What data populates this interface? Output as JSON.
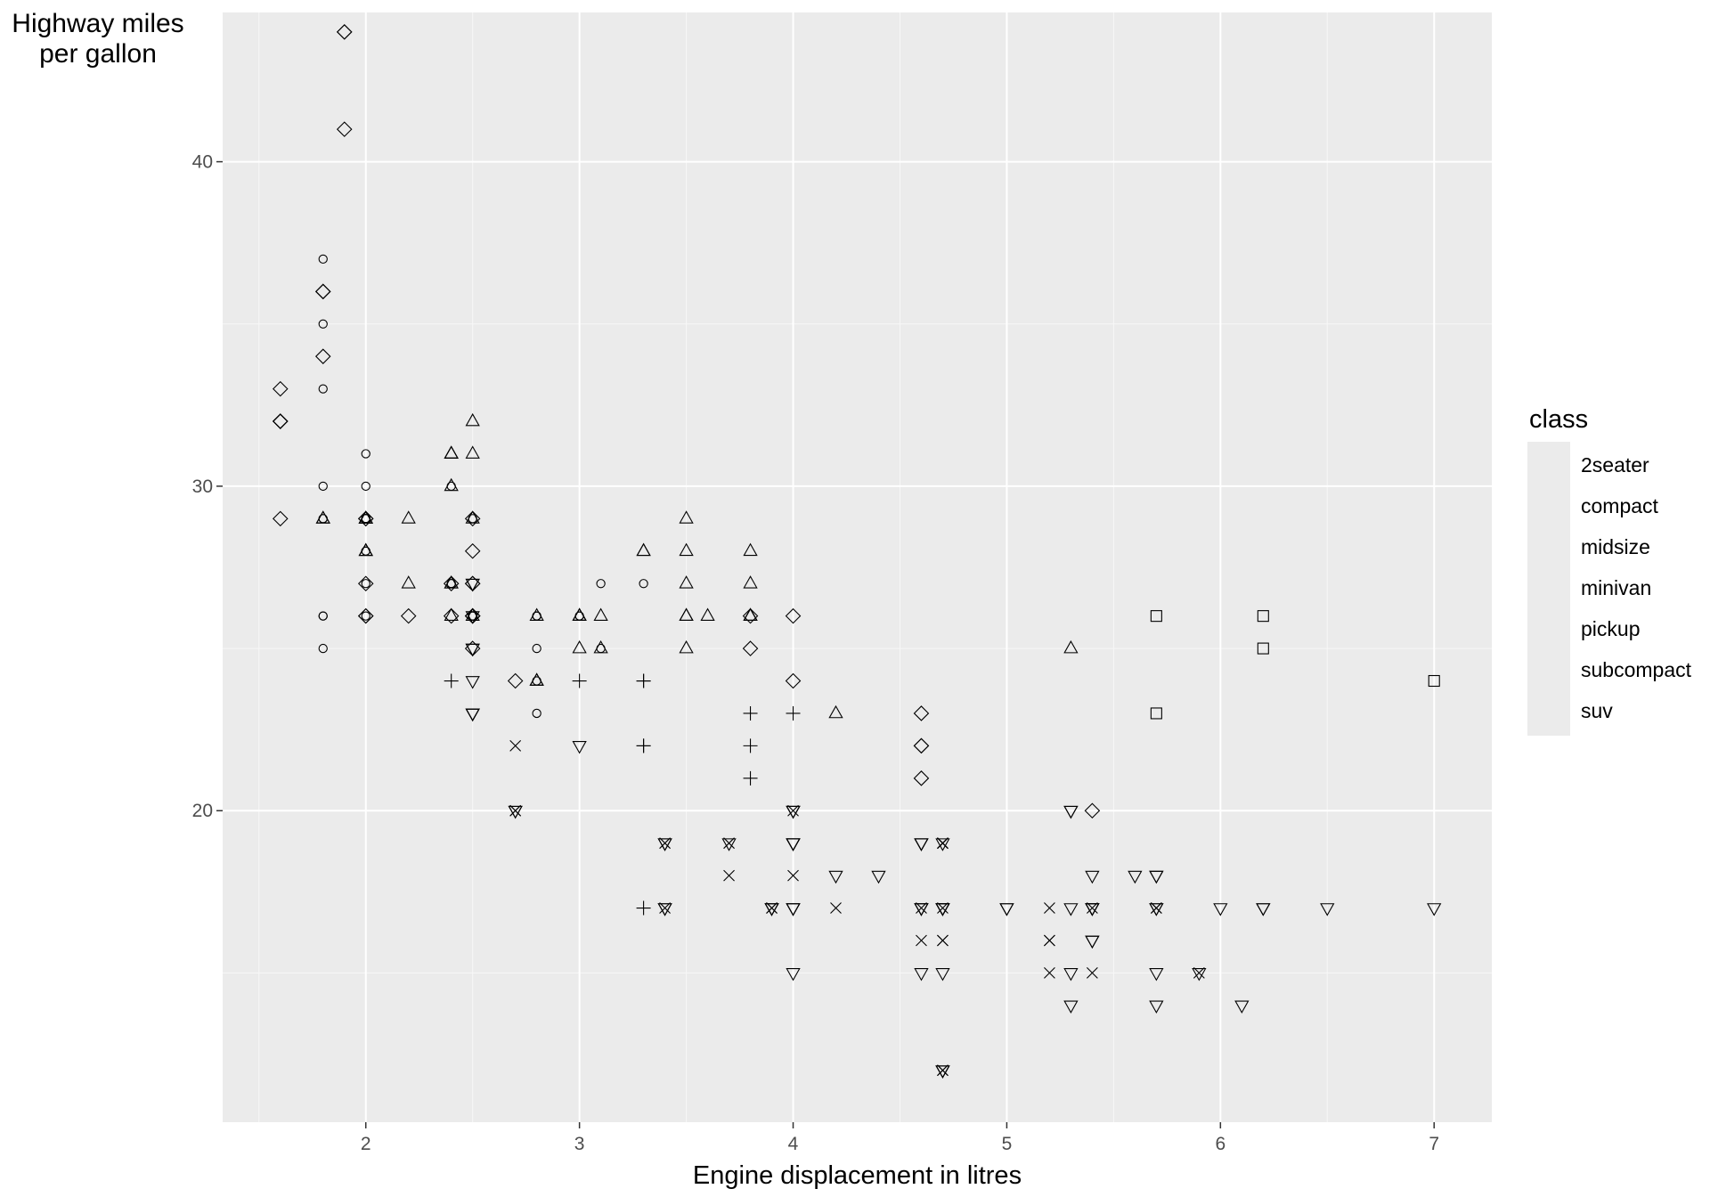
{
  "chart_data": {
    "type": "scatter",
    "xlabel": "Engine displacement in litres",
    "ylabel": "Highway miles per gallon",
    "ylabel_lines": [
      "Highway miles",
      "per gallon"
    ],
    "xlim": [
      1.33,
      7.27
    ],
    "ylim": [
      10.4,
      44.6
    ],
    "x_ticks": [
      2,
      3,
      4,
      5,
      6,
      7
    ],
    "y_ticks": [
      20,
      30,
      40
    ],
    "grid": true,
    "panel_background": "#ebebeb",
    "grid_color": "#ffffff",
    "legend": {
      "title": "class",
      "position": "right"
    },
    "series": [
      {
        "name": "2seater",
        "shape": "square",
        "points": [
          [
            5.7,
            26
          ],
          [
            5.7,
            23
          ],
          [
            6.2,
            26
          ],
          [
            6.2,
            25
          ],
          [
            7.0,
            24
          ]
        ]
      },
      {
        "name": "compact",
        "shape": "circle",
        "points": [
          [
            1.8,
            29
          ],
          [
            1.8,
            29
          ],
          [
            2.0,
            31
          ],
          [
            2.0,
            30
          ],
          [
            2.8,
            26
          ],
          [
            2.8,
            26
          ],
          [
            3.1,
            27
          ],
          [
            1.8,
            26
          ],
          [
            1.8,
            25
          ],
          [
            1.8,
            26
          ],
          [
            2.0,
            28
          ],
          [
            2.0,
            29
          ],
          [
            2.8,
            25
          ],
          [
            2.8,
            26
          ],
          [
            3.1,
            25
          ],
          [
            2.0,
            29
          ],
          [
            2.0,
            27
          ],
          [
            2.8,
            24
          ],
          [
            2.8,
            23
          ],
          [
            1.8,
            37
          ],
          [
            1.8,
            35
          ],
          [
            1.8,
            33
          ],
          [
            1.8,
            30
          ],
          [
            2.0,
            29
          ],
          [
            2.0,
            26
          ],
          [
            2.0,
            29
          ],
          [
            2.0,
            29
          ],
          [
            2.0,
            28
          ],
          [
            2.0,
            29
          ],
          [
            2.4,
            27
          ],
          [
            2.4,
            30
          ],
          [
            2.4,
            27
          ],
          [
            2.5,
            29
          ],
          [
            2.5,
            26
          ],
          [
            2.5,
            26
          ],
          [
            3.0,
            26
          ],
          [
            3.0,
            26
          ],
          [
            3.3,
            27
          ]
        ]
      },
      {
        "name": "midsize",
        "shape": "triangle",
        "points": [
          [
            2.4,
            27
          ],
          [
            2.4,
            30
          ],
          [
            3.1,
            26
          ],
          [
            3.5,
            29
          ],
          [
            3.6,
            26
          ],
          [
            2.8,
            26
          ],
          [
            3.3,
            28
          ],
          [
            3.8,
            26
          ],
          [
            3.8,
            28
          ],
          [
            2.5,
            29
          ],
          [
            2.5,
            32
          ],
          [
            3.0,
            26
          ],
          [
            3.5,
            28
          ],
          [
            2.4,
            27
          ],
          [
            2.4,
            31
          ],
          [
            3.3,
            28
          ],
          [
            3.5,
            27
          ],
          [
            2.5,
            31
          ],
          [
            3.8,
            26
          ],
          [
            3.8,
            27
          ],
          [
            3.0,
            26
          ],
          [
            3.1,
            25
          ],
          [
            3.8,
            26
          ],
          [
            2.2,
            29
          ],
          [
            2.2,
            27
          ],
          [
            2.4,
            31
          ],
          [
            2.4,
            31
          ],
          [
            3.0,
            26
          ],
          [
            3.5,
            25
          ],
          [
            3.5,
            26
          ],
          [
            4.2,
            23
          ],
          [
            5.3,
            25
          ],
          [
            1.8,
            29
          ],
          [
            1.8,
            29
          ],
          [
            2.0,
            28
          ],
          [
            2.0,
            29
          ],
          [
            2.8,
            24
          ],
          [
            2.8,
            24
          ],
          [
            2.4,
            26
          ],
          [
            2.5,
            26
          ],
          [
            3.0,
            25
          ],
          [
            3.5,
            26
          ],
          [
            2.0,
            29
          ],
          [
            2.0,
            28
          ],
          [
            2.0,
            29
          ],
          [
            2.0,
            29
          ],
          [
            2.0,
            28
          ]
        ]
      },
      {
        "name": "minivan",
        "shape": "plus",
        "points": [
          [
            2.4,
            24
          ],
          [
            3.0,
            24
          ],
          [
            3.3,
            22
          ],
          [
            3.3,
            22
          ],
          [
            3.3,
            24
          ],
          [
            3.3,
            24
          ],
          [
            3.3,
            17
          ],
          [
            3.8,
            22
          ],
          [
            3.8,
            21
          ],
          [
            3.8,
            23
          ],
          [
            4.0,
            23
          ]
        ]
      },
      {
        "name": "pickup",
        "shape": "cross",
        "points": [
          [
            2.7,
            20
          ],
          [
            2.7,
            22
          ],
          [
            2.7,
            20
          ],
          [
            3.7,
            19
          ],
          [
            3.7,
            18
          ],
          [
            3.9,
            17
          ],
          [
            3.9,
            17
          ],
          [
            4.7,
            19
          ],
          [
            4.7,
            19
          ],
          [
            4.7,
            12
          ],
          [
            4.7,
            17
          ],
          [
            4.7,
            16
          ],
          [
            5.2,
            17
          ],
          [
            5.2,
            15
          ],
          [
            5.7,
            17
          ],
          [
            5.9,
            15
          ],
          [
            4.7,
            12
          ],
          [
            4.7,
            19
          ],
          [
            4.7,
            16
          ],
          [
            5.2,
            16
          ],
          [
            5.2,
            16
          ],
          [
            5.7,
            17
          ],
          [
            3.4,
            19
          ],
          [
            3.4,
            17
          ],
          [
            4.0,
            20
          ],
          [
            4.0,
            18
          ],
          [
            4.6,
            17
          ],
          [
            4.6,
            16
          ],
          [
            5.4,
            17
          ],
          [
            5.4,
            15
          ],
          [
            4.2,
            17
          ]
        ]
      },
      {
        "name": "subcompact",
        "shape": "diamond",
        "points": [
          [
            3.8,
            26
          ],
          [
            3.8,
            25
          ],
          [
            4.0,
            26
          ],
          [
            4.0,
            24
          ],
          [
            4.6,
            21
          ],
          [
            4.6,
            22
          ],
          [
            4.6,
            23
          ],
          [
            4.6,
            22
          ],
          [
            5.4,
            20
          ],
          [
            1.6,
            33
          ],
          [
            1.6,
            32
          ],
          [
            1.6,
            32
          ],
          [
            1.6,
            29
          ],
          [
            1.6,
            32
          ],
          [
            1.8,
            34
          ],
          [
            1.8,
            36
          ],
          [
            1.8,
            36
          ],
          [
            2.0,
            29
          ],
          [
            2.4,
            26
          ],
          [
            2.4,
            27
          ],
          [
            2.5,
            26
          ],
          [
            2.5,
            26
          ],
          [
            2.5,
            26
          ],
          [
            2.5,
            26
          ],
          [
            2.5,
            27
          ],
          [
            2.5,
            25
          ],
          [
            2.5,
            28
          ],
          [
            2.5,
            29
          ],
          [
            2.0,
            26
          ],
          [
            2.0,
            27
          ],
          [
            2.2,
            26
          ],
          [
            2.7,
            24
          ],
          [
            2.5,
            27
          ],
          [
            1.9,
            44
          ],
          [
            1.9,
            44
          ],
          [
            1.9,
            41
          ],
          [
            2.0,
            29
          ],
          [
            2.0,
            26
          ]
        ]
      },
      {
        "name": "suv",
        "shape": "triangle-down",
        "points": [
          [
            5.3,
            20
          ],
          [
            5.3,
            15
          ],
          [
            5.3,
            20
          ],
          [
            5.7,
            17
          ],
          [
            6.0,
            17
          ],
          [
            5.7,
            15
          ],
          [
            5.7,
            18
          ],
          [
            6.2,
            17
          ],
          [
            6.2,
            17
          ],
          [
            7.0,
            17
          ],
          [
            5.3,
            14
          ],
          [
            5.3,
            17
          ],
          [
            6.5,
            17
          ],
          [
            4.0,
            20
          ],
          [
            4.0,
            15
          ],
          [
            4.0,
            17
          ],
          [
            4.0,
            17
          ],
          [
            4.6,
            19
          ],
          [
            5.0,
            17
          ],
          [
            4.7,
            12
          ],
          [
            4.7,
            19
          ],
          [
            4.7,
            17
          ],
          [
            5.7,
            14
          ],
          [
            6.1,
            14
          ],
          [
            4.0,
            19
          ],
          [
            4.2,
            18
          ],
          [
            4.4,
            18
          ],
          [
            4.6,
            17
          ],
          [
            5.4,
            18
          ],
          [
            5.4,
            17
          ],
          [
            5.4,
            17
          ],
          [
            4.0,
            19
          ],
          [
            4.6,
            17
          ],
          [
            5.0,
            17
          ],
          [
            4.7,
            12
          ],
          [
            4.7,
            17
          ],
          [
            4.7,
            17
          ],
          [
            4.7,
            15
          ],
          [
            5.7,
            18
          ],
          [
            4.0,
            20
          ],
          [
            4.0,
            19
          ],
          [
            4.6,
            17
          ],
          [
            5.4,
            16
          ],
          [
            5.4,
            17
          ],
          [
            4.0,
            19
          ],
          [
            4.0,
            17
          ],
          [
            4.6,
            19
          ],
          [
            4.6,
            15
          ],
          [
            4.6,
            19
          ],
          [
            5.4,
            16
          ],
          [
            5.4,
            17
          ],
          [
            2.7,
            20
          ],
          [
            2.7,
            20
          ],
          [
            3.4,
            19
          ],
          [
            3.4,
            17
          ],
          [
            4.0,
            20
          ],
          [
            4.7,
            17
          ],
          [
            4.7,
            12
          ],
          [
            5.7,
            17
          ],
          [
            5.9,
            15
          ],
          [
            2.5,
            25
          ],
          [
            2.5,
            27
          ],
          [
            2.5,
            23
          ],
          [
            2.5,
            24
          ],
          [
            2.5,
            25
          ],
          [
            2.5,
            26
          ],
          [
            3.0,
            22
          ],
          [
            3.4,
            19
          ],
          [
            3.4,
            17
          ],
          [
            3.7,
            19
          ],
          [
            3.9,
            17
          ],
          [
            4.7,
            17
          ],
          [
            5.6,
            18
          ],
          [
            2.5,
            27
          ],
          [
            2.5,
            23
          ],
          [
            2.5,
            23
          ],
          [
            3.9,
            17
          ],
          [
            3.9,
            17
          ]
        ]
      }
    ]
  }
}
